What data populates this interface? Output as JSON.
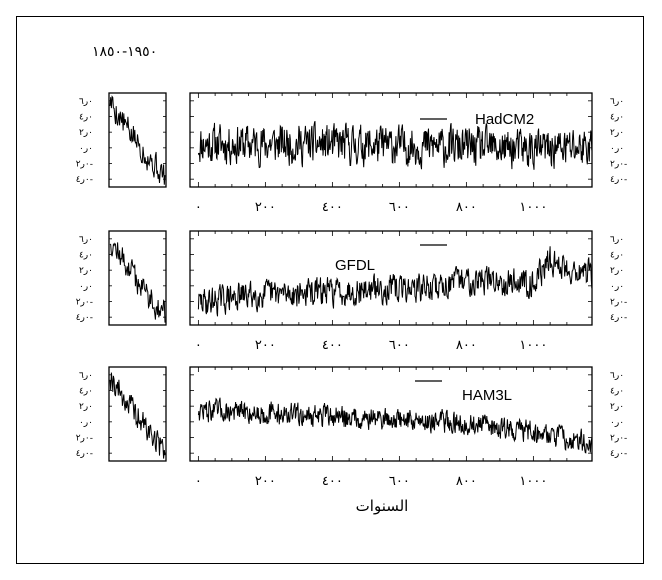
{
  "chart_data": {
    "type": "line",
    "title": "١٩٥٠-١٨٥٠",
    "xlabel": "السنوات",
    "x_ticks": [
      "٠",
      "٢٠٠",
      "٤٠٠",
      "٦٠٠",
      "٨٠٠",
      "١٠٠٠"
    ],
    "x_tick_values": [
      0,
      200,
      400,
      600,
      800,
      1000
    ],
    "xlim": [
      -25,
      1175
    ],
    "y_ticks": [
      "٠ر٦",
      "٠ر٤",
      "٠ر٢",
      "٠ر٠",
      "٠ر٢-",
      "٠ر٤-"
    ],
    "y_tick_values": [
      0.6,
      0.4,
      0.2,
      0.0,
      -0.2,
      -0.4
    ],
    "ylim": [
      -0.5,
      0.7
    ],
    "grid": false,
    "panels": [
      {
        "name": "HadCM2",
        "trend": [
          [
            0,
            0.05
          ],
          [
            300,
            0.05
          ],
          [
            700,
            0.02
          ],
          [
            1000,
            -0.02
          ],
          [
            1175,
            0.02
          ]
        ],
        "noise": 0.14,
        "seed": 11
      },
      {
        "name": "GFDL",
        "trend": [
          [
            0,
            -0.22
          ],
          [
            150,
            -0.12
          ],
          [
            500,
            -0.05
          ],
          [
            700,
            -0.02
          ],
          [
            800,
            0.08
          ],
          [
            1000,
            0.05
          ],
          [
            1050,
            0.32
          ],
          [
            1100,
            0.22
          ],
          [
            1175,
            0.15
          ]
        ],
        "noise": 0.1,
        "seed": 29
      },
      {
        "name": "HAM3L",
        "trend": [
          [
            0,
            0.15
          ],
          [
            400,
            0.07
          ],
          [
            750,
            0.0
          ],
          [
            1000,
            -0.12
          ],
          [
            1175,
            -0.28
          ]
        ],
        "noise": 0.08,
        "seed": 47
      }
    ],
    "observed_1850_1950": {
      "x": [
        1850,
        1950
      ],
      "start": 0.62,
      "end": -0.38,
      "noise": 0.11,
      "seed": 5
    }
  }
}
